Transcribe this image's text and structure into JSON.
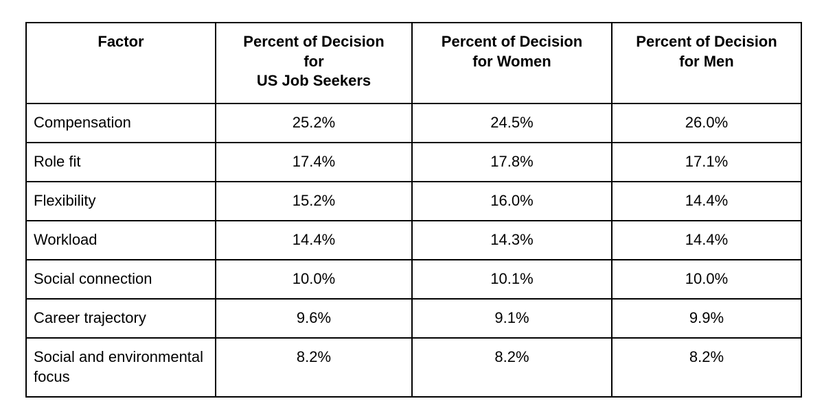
{
  "table": {
    "header": [
      "Factor",
      "Percent of Decision\nfor\nUS Job Seekers",
      "Percent of Decision\nfor Women",
      "Percent of Decision\nfor Men"
    ],
    "rows": [
      [
        "Compensation",
        "25.2%",
        "24.5%",
        "26.0%"
      ],
      [
        "Role fit",
        "17.4%",
        "17.8%",
        "17.1%"
      ],
      [
        "Flexibility",
        "15.2%",
        "16.0%",
        "14.4%"
      ],
      [
        "Workload",
        "14.4%",
        "14.3%",
        "14.4%"
      ],
      [
        "Social connection",
        "10.0%",
        "10.1%",
        "10.0%"
      ],
      [
        "Career trajectory",
        "9.6%",
        "9.1%",
        "9.9%"
      ],
      [
        "Social and environmental focus",
        "8.2%",
        "8.2%",
        "8.2%"
      ]
    ],
    "border_color": "#000000",
    "text_color": "#000000",
    "background_color": "#ffffff"
  },
  "chart_data": {
    "type": "table",
    "title": "",
    "columns": [
      "Factor",
      "Percent of Decision for US Job Seekers",
      "Percent of Decision for Women",
      "Percent of Decision for Men"
    ],
    "categories": [
      "Compensation",
      "Role fit",
      "Flexibility",
      "Workload",
      "Social connection",
      "Career trajectory",
      "Social and environmental focus"
    ],
    "series": [
      {
        "name": "US Job Seekers",
        "values": [
          25.2,
          17.4,
          15.2,
          14.4,
          10.0,
          9.6,
          8.2
        ]
      },
      {
        "name": "Women",
        "values": [
          24.5,
          17.8,
          16.0,
          14.3,
          10.1,
          9.1,
          8.2
        ]
      },
      {
        "name": "Men",
        "values": [
          26.0,
          17.1,
          14.4,
          14.4,
          10.0,
          9.9,
          8.2
        ]
      }
    ],
    "unit": "%"
  }
}
